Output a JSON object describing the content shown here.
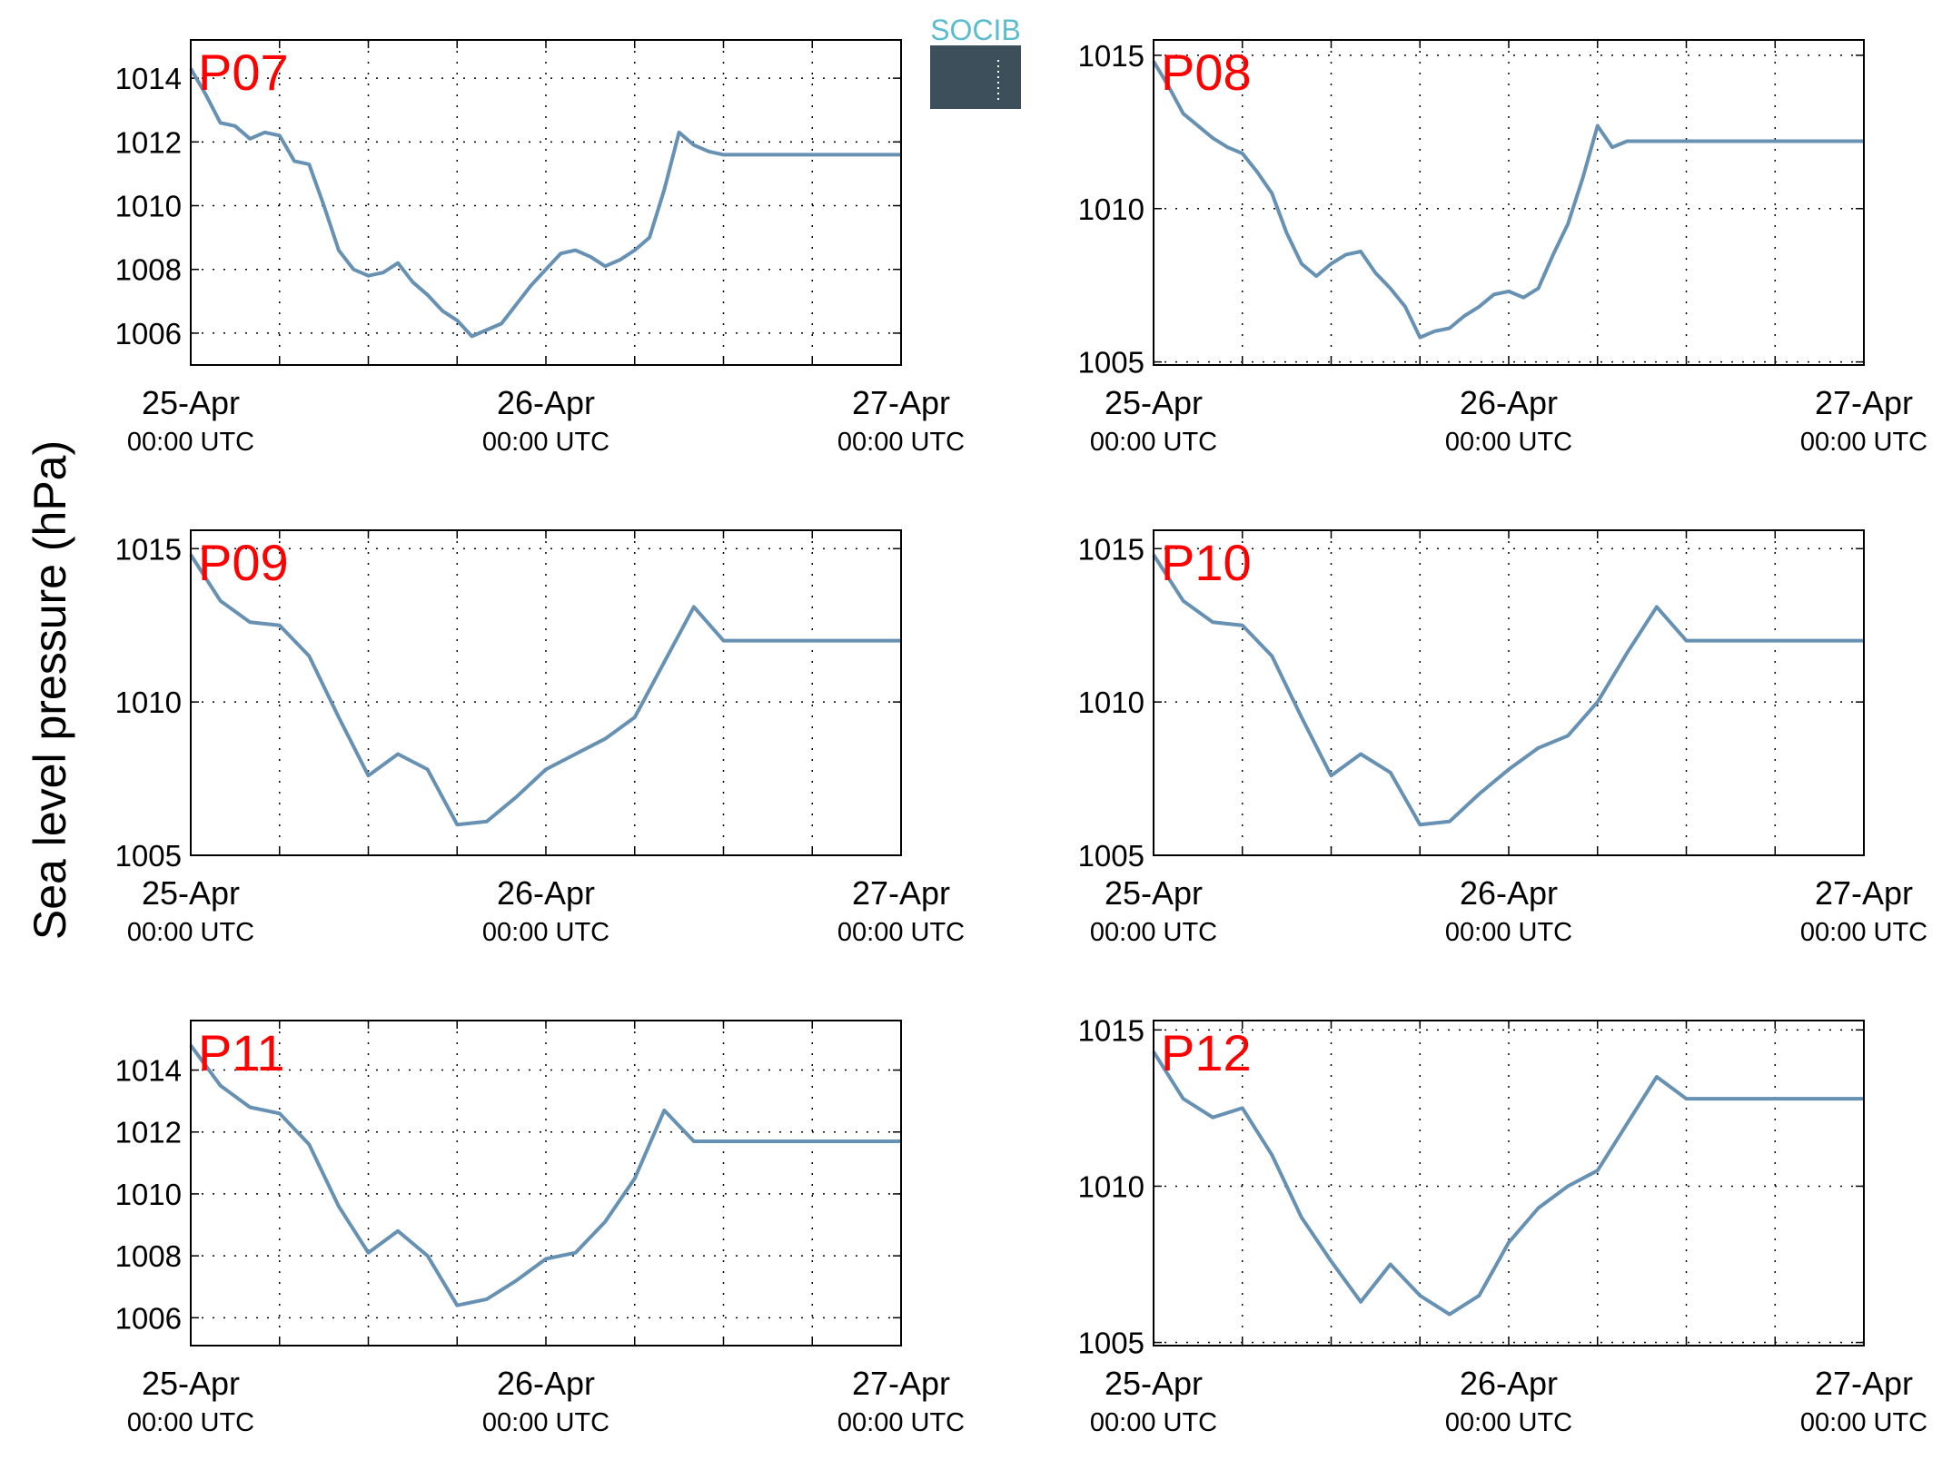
{
  "ylabel": "Sea level pressure (hPa)",
  "logo": {
    "text": "SOCIB"
  },
  "colors": {
    "line": "#6691b3",
    "panel_label": "#ff0000"
  },
  "chart_data": [
    {
      "type": "line",
      "panel_label": "P07",
      "xlim": [
        0,
        48
      ],
      "ylim": [
        1005,
        1015.2
      ],
      "yticks": [
        1006,
        1008,
        1010,
        1012,
        1014
      ],
      "grid": true,
      "x_ticks": [
        {
          "x": 0,
          "date": "25-Apr",
          "time": "00:00 UTC"
        },
        {
          "x": 24,
          "date": "26-Apr",
          "time": "00:00 UTC"
        },
        {
          "x": 48,
          "date": "27-Apr",
          "time": "00:00 UTC"
        }
      ],
      "x": [
        0,
        1,
        2,
        3,
        4,
        5,
        6,
        7,
        8,
        9,
        10,
        11,
        12,
        13,
        14,
        15,
        16,
        17,
        18,
        19,
        20,
        21,
        22,
        23,
        24,
        25,
        26,
        27,
        28,
        29,
        30,
        31,
        32,
        33,
        34,
        35,
        36,
        37,
        38,
        39,
        40,
        41,
        42,
        43,
        44,
        45,
        46,
        47,
        48
      ],
      "y": [
        1014.3,
        1013.5,
        1012.6,
        1012.5,
        1012.1,
        1012.3,
        1012.2,
        1011.4,
        1011.3,
        1010.0,
        1008.6,
        1008.0,
        1007.8,
        1007.9,
        1008.2,
        1007.6,
        1007.2,
        1006.7,
        1006.4,
        1005.9,
        1006.1,
        1006.3,
        1006.9,
        1007.5,
        1008.0,
        1008.5,
        1008.6,
        1008.4,
        1008.1,
        1008.3,
        1008.6,
        1009.0,
        1010.5,
        1012.3,
        1011.9,
        1011.7,
        1011.6,
        1011.6,
        1011.6,
        1011.6,
        1011.6,
        1011.6,
        1011.6,
        1011.6,
        1011.6,
        1011.6,
        1011.6,
        1011.6,
        1011.6
      ]
    },
    {
      "type": "line",
      "panel_label": "P08",
      "xlim": [
        0,
        48
      ],
      "ylim": [
        1004.9,
        1015.5
      ],
      "yticks": [
        1005,
        1010,
        1015
      ],
      "grid": true,
      "x_ticks": [
        {
          "x": 0,
          "date": "25-Apr",
          "time": "00:00 UTC"
        },
        {
          "x": 24,
          "date": "26-Apr",
          "time": "00:00 UTC"
        },
        {
          "x": 48,
          "date": "27-Apr",
          "time": "00:00 UTC"
        }
      ],
      "x": [
        0,
        1,
        2,
        3,
        4,
        5,
        6,
        7,
        8,
        9,
        10,
        11,
        12,
        13,
        14,
        15,
        16,
        17,
        18,
        19,
        20,
        21,
        22,
        23,
        24,
        25,
        26,
        27,
        28,
        29,
        30,
        31,
        32,
        33,
        34,
        35,
        36,
        37,
        38,
        39,
        40,
        41,
        42,
        43,
        44,
        45,
        46,
        47,
        48
      ],
      "y": [
        1014.8,
        1014.0,
        1013.1,
        1012.7,
        1012.3,
        1012.0,
        1011.8,
        1011.2,
        1010.5,
        1009.2,
        1008.2,
        1007.8,
        1008.2,
        1008.5,
        1008.6,
        1007.9,
        1007.4,
        1006.8,
        1005.8,
        1006.0,
        1006.1,
        1006.5,
        1006.8,
        1007.2,
        1007.3,
        1007.1,
        1007.4,
        1008.5,
        1009.5,
        1011.0,
        1012.7,
        1012.0,
        1012.2,
        1012.2,
        1012.2,
        1012.2,
        1012.2,
        1012.2,
        1012.2,
        1012.2,
        1012.2,
        1012.2,
        1012.2,
        1012.2,
        1012.2,
        1012.2,
        1012.2,
        1012.2,
        1012.2
      ]
    },
    {
      "type": "line",
      "panel_label": "P09",
      "xlim": [
        0,
        48
      ],
      "ylim": [
        1005,
        1015.6
      ],
      "yticks": [
        1005,
        1010,
        1015
      ],
      "grid": true,
      "x_ticks": [
        {
          "x": 0,
          "date": "25-Apr",
          "time": "00:00 UTC"
        },
        {
          "x": 24,
          "date": "26-Apr",
          "time": "00:00 UTC"
        },
        {
          "x": 48,
          "date": "27-Apr",
          "time": "00:00 UTC"
        }
      ],
      "x": [
        0,
        2,
        4,
        6,
        8,
        10,
        12,
        14,
        16,
        18,
        20,
        22,
        24,
        26,
        28,
        30,
        32,
        34,
        36,
        38,
        40,
        42,
        44,
        46,
        48
      ],
      "y": [
        1014.8,
        1013.3,
        1012.6,
        1012.5,
        1011.5,
        1009.5,
        1007.6,
        1008.3,
        1007.8,
        1006.0,
        1006.1,
        1006.9,
        1007.8,
        1008.3,
        1008.8,
        1009.5,
        1011.3,
        1013.1,
        1012.0,
        1012.0,
        1012.0,
        1012.0,
        1012.0,
        1012.0,
        1012.0
      ]
    },
    {
      "type": "line",
      "panel_label": "P10",
      "xlim": [
        0,
        48
      ],
      "ylim": [
        1005,
        1015.6
      ],
      "yticks": [
        1005,
        1010,
        1015
      ],
      "grid": true,
      "x_ticks": [
        {
          "x": 0,
          "date": "25-Apr",
          "time": "00:00 UTC"
        },
        {
          "x": 24,
          "date": "26-Apr",
          "time": "00:00 UTC"
        },
        {
          "x": 48,
          "date": "27-Apr",
          "time": "00:00 UTC"
        }
      ],
      "x": [
        0,
        2,
        4,
        6,
        8,
        10,
        12,
        14,
        16,
        18,
        20,
        22,
        24,
        26,
        28,
        30,
        32,
        34,
        36,
        38,
        40,
        42,
        44,
        46,
        48
      ],
      "y": [
        1014.8,
        1013.3,
        1012.6,
        1012.5,
        1011.5,
        1009.5,
        1007.6,
        1008.3,
        1007.7,
        1006.0,
        1006.1,
        1007.0,
        1007.8,
        1008.5,
        1008.9,
        1010.0,
        1011.6,
        1013.1,
        1012.0,
        1012.0,
        1012.0,
        1012.0,
        1012.0,
        1012.0,
        1012.0
      ]
    },
    {
      "type": "line",
      "panel_label": "P11",
      "xlim": [
        0,
        48
      ],
      "ylim": [
        1005.1,
        1015.6
      ],
      "yticks": [
        1006,
        1008,
        1010,
        1012,
        1014
      ],
      "grid": true,
      "x_ticks": [
        {
          "x": 0,
          "date": "25-Apr",
          "time": "00:00 UTC"
        },
        {
          "x": 24,
          "date": "26-Apr",
          "time": "00:00 UTC"
        },
        {
          "x": 48,
          "date": "27-Apr",
          "time": "00:00 UTC"
        }
      ],
      "x": [
        0,
        2,
        4,
        6,
        8,
        10,
        12,
        14,
        16,
        18,
        20,
        22,
        24,
        26,
        28,
        30,
        32,
        34,
        36,
        38,
        40,
        42,
        44,
        46,
        48
      ],
      "y": [
        1014.8,
        1013.5,
        1012.8,
        1012.6,
        1011.6,
        1009.6,
        1008.1,
        1008.8,
        1008.0,
        1006.4,
        1006.6,
        1007.2,
        1007.9,
        1008.1,
        1009.1,
        1010.5,
        1012.7,
        1011.7,
        1011.7,
        1011.7,
        1011.7,
        1011.7,
        1011.7,
        1011.7,
        1011.7
      ]
    },
    {
      "type": "line",
      "panel_label": "P12",
      "xlim": [
        0,
        48
      ],
      "ylim": [
        1004.9,
        1015.3
      ],
      "yticks": [
        1005,
        1010,
        1015
      ],
      "grid": true,
      "x_ticks": [
        {
          "x": 0,
          "date": "25-Apr",
          "time": "00:00 UTC"
        },
        {
          "x": 24,
          "date": "26-Apr",
          "time": "00:00 UTC"
        },
        {
          "x": 48,
          "date": "27-Apr",
          "time": "00:00 UTC"
        }
      ],
      "x": [
        0,
        2,
        4,
        6,
        8,
        10,
        12,
        14,
        16,
        18,
        20,
        22,
        24,
        26,
        28,
        30,
        32,
        34,
        36,
        38,
        40,
        42,
        44,
        46,
        48
      ],
      "y": [
        1014.3,
        1012.8,
        1012.2,
        1012.5,
        1011.0,
        1009.0,
        1007.6,
        1006.3,
        1007.5,
        1006.5,
        1005.9,
        1006.5,
        1008.2,
        1009.3,
        1010.0,
        1010.5,
        1012.0,
        1013.5,
        1012.8,
        1012.8,
        1012.8,
        1012.8,
        1012.8,
        1012.8,
        1012.8
      ]
    }
  ]
}
